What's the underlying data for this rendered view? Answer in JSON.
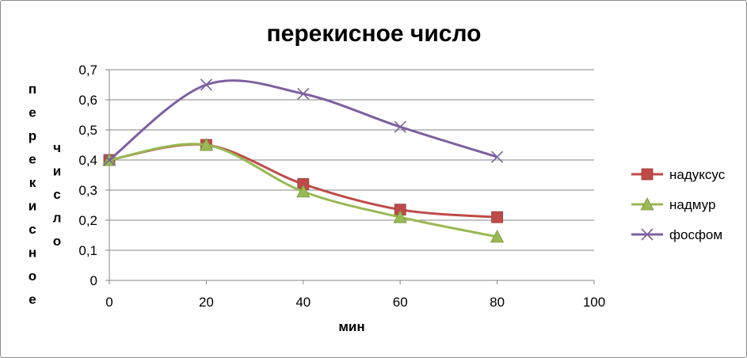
{
  "chart_data": {
    "type": "line",
    "title": "перекисное число",
    "xlabel": "мин",
    "ylabel_col1": "перекисное",
    "ylabel_col2": "число",
    "xlim": [
      0,
      100
    ],
    "ylim": [
      0,
      0.7
    ],
    "x_ticks": [
      0,
      20,
      40,
      60,
      80,
      100
    ],
    "x_tick_labels": [
      "0",
      "20",
      "40",
      "60",
      "80",
      "100"
    ],
    "y_ticks": [
      0,
      0.1,
      0.2,
      0.3,
      0.4,
      0.5,
      0.6,
      0.7
    ],
    "y_tick_labels": [
      "0",
      "0,1",
      "0,2",
      "0,3",
      "0,4",
      "0,5",
      "0,6",
      "0,7"
    ],
    "grid": "horizontal",
    "legend_position": "right",
    "x": [
      0,
      20,
      40,
      60,
      80
    ],
    "series": [
      {
        "name": "надуксус",
        "values": [
          0.4,
          0.45,
          0.32,
          0.235,
          0.21
        ],
        "color": "#be4b48",
        "marker": "square"
      },
      {
        "name": "надмур",
        "values": [
          0.4,
          0.45,
          0.295,
          0.21,
          0.145
        ],
        "color": "#98b954",
        "marker": "triangle"
      },
      {
        "name": "фосфом",
        "values": [
          0.4,
          0.65,
          0.62,
          0.51,
          0.41
        ],
        "color": "#7d60a0",
        "marker": "x"
      }
    ]
  }
}
